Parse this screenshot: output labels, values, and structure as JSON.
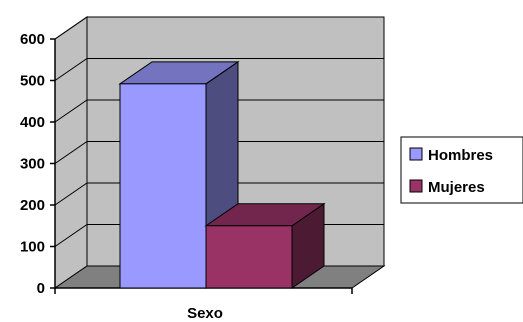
{
  "chart_data": {
    "type": "bar",
    "three_d": true,
    "categories": [
      "Sexo"
    ],
    "series": [
      {
        "name": "Hombres",
        "values": [
          492
        ],
        "color": "#9999ff"
      },
      {
        "name": "Mujeres",
        "values": [
          150
        ],
        "color": "#993366"
      }
    ],
    "xlabel": "Sexo",
    "ylabel": "",
    "ylim": [
      0,
      600
    ],
    "yticks": [
      "0",
      "100",
      "200",
      "300",
      "400",
      "500",
      "600"
    ],
    "grid": true,
    "legend_position": "right",
    "colors": {
      "wall": "#c0c0c0",
      "floor": "#808080",
      "grid": "#000000"
    }
  }
}
